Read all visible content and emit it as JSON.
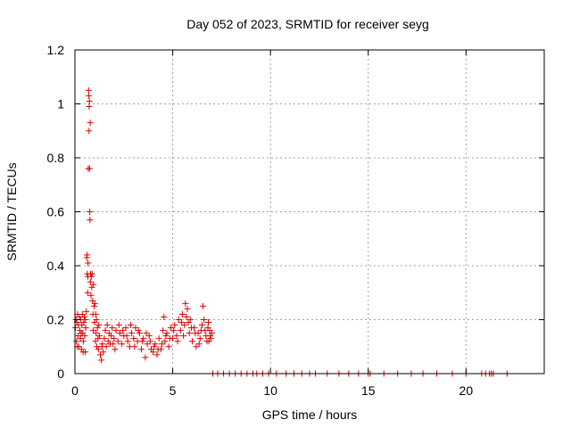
{
  "chart_data": {
    "type": "scatter",
    "title": "Day 052 of 2023, SRMTID for receiver seyg",
    "xlabel": "GPS time / hours",
    "ylabel": "SRMTID / TECUs",
    "xlim": [
      0,
      24
    ],
    "ylim": [
      0,
      1.2
    ],
    "x_ticks": [
      0,
      5,
      10,
      15,
      20
    ],
    "y_ticks": [
      0,
      0.2,
      0.4,
      0.6,
      0.8,
      1,
      1.2
    ],
    "y_tick_labels": [
      "0",
      "0.2",
      "0.4",
      "0.6",
      "0.8",
      "1",
      "1.2"
    ],
    "grid": true,
    "marker": "plus",
    "series": [
      {
        "name": "SRMTID",
        "color": "#e00000",
        "points": [
          [
            0.02,
            0.17
          ],
          [
            0.05,
            0.2
          ],
          [
            0.08,
            0.12
          ],
          [
            0.1,
            0.19
          ],
          [
            0.13,
            0.22
          ],
          [
            0.15,
            0.14
          ],
          [
            0.18,
            0.18
          ],
          [
            0.2,
            0.1
          ],
          [
            0.23,
            0.21
          ],
          [
            0.25,
            0.16
          ],
          [
            0.28,
            0.13
          ],
          [
            0.3,
            0.2
          ],
          [
            0.33,
            0.09
          ],
          [
            0.35,
            0.18
          ],
          [
            0.38,
            0.22
          ],
          [
            0.4,
            0.15
          ],
          [
            0.43,
            0.12
          ],
          [
            0.45,
            0.19
          ],
          [
            0.48,
            0.21
          ],
          [
            0.5,
            0.14
          ],
          [
            0.53,
            0.08
          ],
          [
            0.55,
            0.17
          ],
          [
            0.58,
            0.23
          ],
          [
            0.6,
            0.43
          ],
          [
            0.62,
            0.44
          ],
          [
            0.63,
            0.37
          ],
          [
            0.65,
            0.3
          ],
          [
            0.67,
            0.41
          ],
          [
            0.68,
            0.76
          ],
          [
            0.7,
            1.05
          ],
          [
            0.71,
            1.03
          ],
          [
            0.72,
            0.9
          ],
          [
            0.73,
            0.99
          ],
          [
            0.74,
            1.01
          ],
          [
            0.75,
            0.76
          ],
          [
            0.76,
            0.6
          ],
          [
            0.77,
            0.57
          ],
          [
            0.78,
            0.93
          ],
          [
            0.8,
            0.37
          ],
          [
            0.82,
            0.29
          ],
          [
            0.84,
            0.36
          ],
          [
            0.86,
            0.32
          ],
          [
            0.88,
            0.37
          ],
          [
            0.9,
            0.27
          ],
          [
            0.92,
            0.22
          ],
          [
            0.95,
            0.33
          ],
          [
            0.98,
            0.25
          ],
          [
            1.0,
            0.19
          ],
          [
            1.02,
            0.26
          ],
          [
            1.05,
            0.12
          ],
          [
            1.08,
            0.15
          ],
          [
            1.1,
            0.2
          ],
          [
            1.12,
            0.1
          ],
          [
            1.15,
            0.17
          ],
          [
            1.18,
            0.13
          ],
          [
            1.2,
            0.09
          ],
          [
            1.25,
            0.14
          ],
          [
            1.3,
            0.07
          ],
          [
            1.35,
            0.05
          ],
          [
            1.4,
            0.11
          ],
          [
            1.45,
            0.08
          ],
          [
            1.5,
            0.13
          ],
          [
            1.55,
            0.16
          ],
          [
            1.6,
            0.1
          ],
          [
            1.65,
            0.18
          ],
          [
            1.7,
            0.12
          ],
          [
            1.75,
            0.15
          ],
          [
            1.8,
            0.11
          ],
          [
            1.85,
            0.14
          ],
          [
            1.9,
            0.17
          ],
          [
            2.0,
            0.13
          ],
          [
            2.1,
            0.16
          ],
          [
            2.2,
            0.12
          ],
          [
            2.3,
            0.15
          ],
          [
            2.4,
            0.11
          ],
          [
            2.5,
            0.14
          ],
          [
            2.6,
            0.17
          ],
          [
            2.7,
            0.12
          ],
          [
            2.8,
            0.1
          ],
          [
            2.9,
            0.15
          ],
          [
            3.0,
            0.13
          ],
          [
            3.1,
            0.17
          ],
          [
            3.2,
            0.12
          ],
          [
            3.3,
            0.15
          ],
          [
            3.4,
            0.09
          ],
          [
            3.5,
            0.13
          ],
          [
            3.6,
            0.06
          ],
          [
            3.7,
            0.11
          ],
          [
            3.8,
            0.14
          ],
          [
            3.9,
            0.09
          ],
          [
            4.0,
            0.08
          ],
          [
            4.1,
            0.11
          ],
          [
            4.2,
            0.07
          ],
          [
            4.3,
            0.13
          ],
          [
            4.4,
            0.09
          ],
          [
            4.5,
            0.16
          ],
          [
            4.55,
            0.21
          ],
          [
            4.6,
            0.12
          ],
          [
            4.7,
            0.15
          ],
          [
            4.8,
            0.1
          ],
          [
            4.9,
            0.17
          ],
          [
            5.0,
            0.13
          ],
          [
            5.1,
            0.18
          ],
          [
            5.2,
            0.14
          ],
          [
            5.3,
            0.2
          ],
          [
            5.4,
            0.16
          ],
          [
            5.5,
            0.22
          ],
          [
            5.6,
            0.18
          ],
          [
            5.65,
            0.26
          ],
          [
            5.7,
            0.21
          ],
          [
            5.75,
            0.24
          ],
          [
            5.8,
            0.19
          ],
          [
            5.85,
            0.15
          ],
          [
            5.9,
            0.2
          ],
          [
            6.0,
            0.12
          ],
          [
            6.1,
            0.17
          ],
          [
            6.2,
            0.1
          ],
          [
            6.3,
            0.15
          ],
          [
            6.4,
            0.13
          ],
          [
            6.5,
            0.18
          ],
          [
            6.55,
            0.25
          ],
          [
            6.6,
            0.2
          ],
          [
            6.7,
            0.14
          ],
          [
            6.8,
            0.17
          ],
          [
            6.85,
            0.12
          ],
          [
            6.9,
            0.16
          ],
          [
            6.95,
            0.13
          ],
          [
            7.0,
            0.15
          ],
          [
            0.12,
            0.1
          ],
          [
            0.32,
            0.15
          ],
          [
            0.42,
            0.08
          ],
          [
            0.52,
            0.2
          ],
          [
            0.66,
            0.36
          ],
          [
            0.79,
            0.34
          ],
          [
            0.94,
            0.16
          ],
          [
            1.06,
            0.22
          ],
          [
            1.22,
            0.18
          ],
          [
            1.38,
            0.1
          ],
          [
            1.95,
            0.11
          ],
          [
            2.05,
            0.09
          ],
          [
            2.25,
            0.18
          ],
          [
            2.45,
            0.16
          ],
          [
            2.65,
            0.14
          ],
          [
            2.85,
            0.18
          ],
          [
            3.05,
            0.1
          ],
          [
            3.25,
            0.16
          ],
          [
            3.45,
            0.12
          ],
          [
            3.65,
            0.15
          ],
          [
            3.85,
            0.12
          ],
          [
            4.05,
            0.1
          ],
          [
            4.25,
            0.09
          ],
          [
            4.45,
            0.11
          ],
          [
            4.65,
            0.14
          ],
          [
            4.85,
            0.13
          ],
          [
            5.05,
            0.16
          ],
          [
            5.25,
            0.12
          ],
          [
            5.45,
            0.19
          ],
          [
            5.55,
            0.14
          ],
          [
            5.95,
            0.17
          ],
          [
            6.15,
            0.15
          ],
          [
            6.35,
            0.11
          ],
          [
            6.45,
            0.16
          ],
          [
            6.65,
            0.16
          ],
          [
            6.75,
            0.12
          ],
          [
            6.82,
            0.19
          ],
          [
            6.92,
            0.14
          ],
          [
            7.05,
            0
          ],
          [
            7.3,
            0
          ],
          [
            7.6,
            0
          ],
          [
            7.9,
            0
          ],
          [
            8.2,
            0
          ],
          [
            8.5,
            0
          ],
          [
            8.8,
            0
          ],
          [
            9.1,
            0
          ],
          [
            9.3,
            0
          ],
          [
            9.6,
            0
          ],
          [
            9.9,
            0
          ],
          [
            10.3,
            0
          ],
          [
            10.8,
            0
          ],
          [
            11.2,
            0
          ],
          [
            11.6,
            0
          ],
          [
            12.0,
            0
          ],
          [
            12.3,
            0
          ],
          [
            12.9,
            0
          ],
          [
            13.5,
            0
          ],
          [
            14.0,
            0
          ],
          [
            14.5,
            0
          ],
          [
            15.0,
            0
          ],
          [
            15.1,
            0
          ],
          [
            15.8,
            0
          ],
          [
            16.5,
            0
          ],
          [
            17.2,
            0
          ],
          [
            17.8,
            0
          ],
          [
            18.5,
            0
          ],
          [
            19.3,
            0
          ],
          [
            20.0,
            0
          ],
          [
            20.8,
            0
          ],
          [
            21.0,
            0
          ],
          [
            21.2,
            0
          ],
          [
            21.3,
            0
          ],
          [
            21.4,
            0
          ],
          [
            22.1,
            0
          ]
        ]
      }
    ]
  }
}
